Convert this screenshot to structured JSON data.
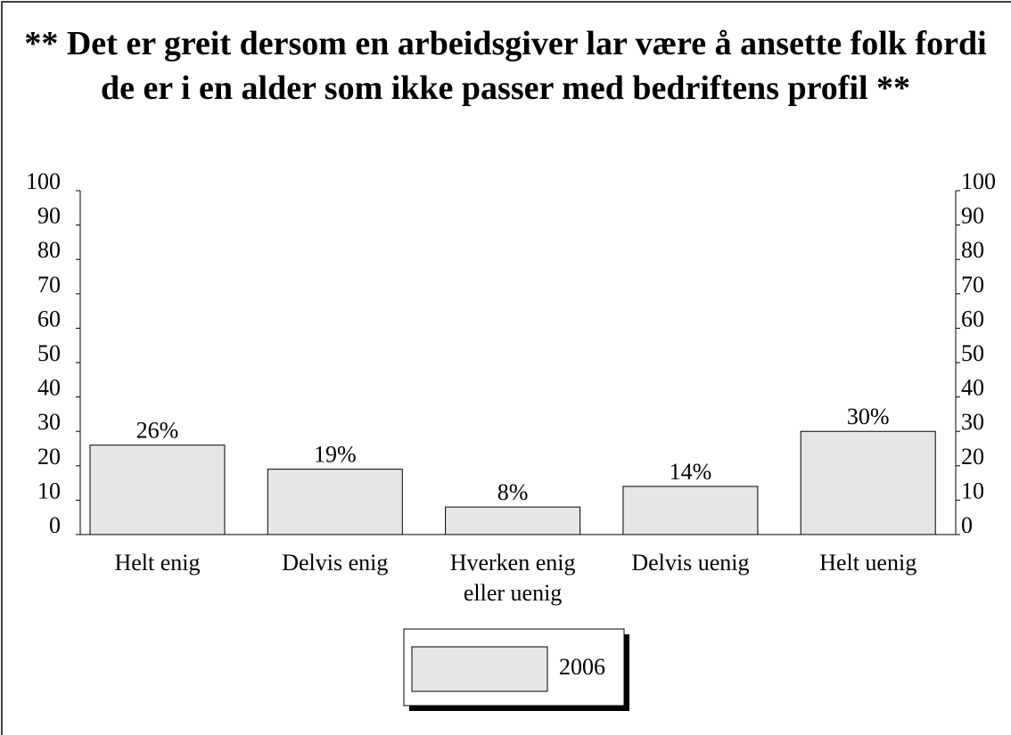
{
  "chart_data": {
    "type": "bar",
    "title": "** Det er greit dersom en arbeidsgiver lar være å ansette folk fordi de er i en alder som ikke passer med bedriftens profil **",
    "categories": [
      "Helt enig",
      "Delvis enig",
      "Hverken enig eller uenig",
      "Delvis uenig",
      "Helt uenig"
    ],
    "series": [
      {
        "name": "2006",
        "color": "#e6e6e6",
        "values": [
          26,
          19,
          8,
          14,
          30
        ],
        "value_labels": [
          "26%",
          "19%",
          "8%",
          "14%",
          "30%"
        ]
      }
    ],
    "ylim": [
      0,
      100
    ],
    "yticks": [
      0,
      10,
      20,
      30,
      40,
      50,
      60,
      70,
      80,
      90,
      100
    ],
    "y2lim": [
      0,
      100
    ],
    "y2ticks": [
      0,
      10,
      20,
      30,
      40,
      50,
      60,
      70,
      80,
      90,
      100
    ],
    "legend": "bottom"
  }
}
